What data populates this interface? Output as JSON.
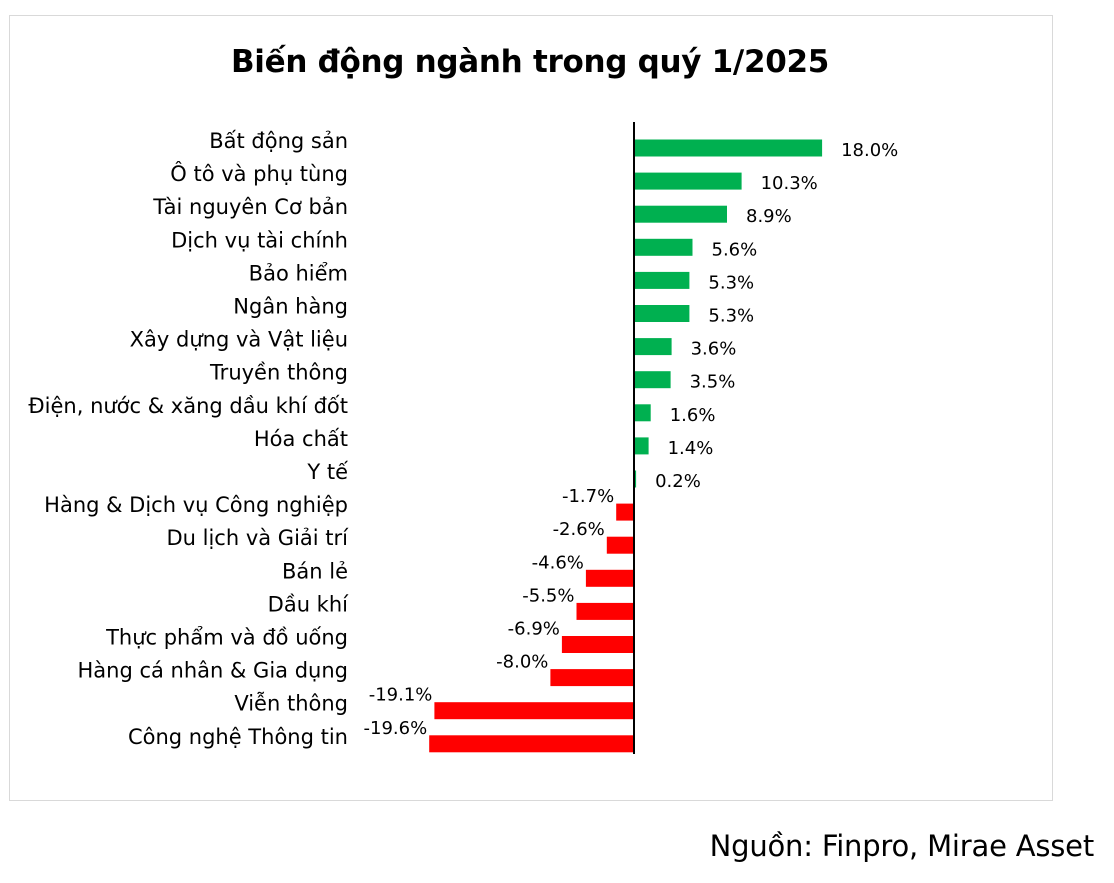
{
  "chart_data": {
    "type": "bar",
    "orientation": "horizontal",
    "title": "Biến động ngành trong quý 1/2025",
    "categories": [
      "Bất động sản",
      "Ô tô và phụ tùng",
      "Tài nguyên Cơ bản",
      "Dịch vụ tài chính",
      "Bảo hiểm",
      "Ngân hàng",
      "Xây dựng và Vật liệu",
      "Truyền thông",
      "Điện, nước & xăng dầu khí đốt",
      "Hóa chất",
      "Y tế",
      "Hàng & Dịch vụ Công nghiệp",
      "Du lịch và Giải trí",
      "Bán lẻ",
      "Dầu khí",
      "Thực phẩm và đồ uống",
      "Hàng cá nhân & Gia dụng",
      "Viễn thông",
      "Công nghệ Thông tin"
    ],
    "values": [
      18.0,
      10.3,
      8.9,
      5.6,
      5.3,
      5.3,
      3.6,
      3.5,
      1.6,
      1.4,
      0.2,
      -1.7,
      -2.6,
      -4.6,
      -5.5,
      -6.9,
      -8.0,
      -19.1,
      -19.6
    ],
    "data_labels": [
      "18.0%",
      "10.3%",
      "8.9%",
      "5.6%",
      "5.3%",
      "5.3%",
      "3.6%",
      "3.5%",
      "1.6%",
      "1.4%",
      "0.2%",
      "-1.7%",
      "-2.6%",
      "-4.6%",
      "-5.5%",
      "-6.9%",
      "-8.0%",
      "-19.1%",
      "-19.6%"
    ],
    "unit": "%",
    "xlim": [
      -20,
      18
    ],
    "grid": false,
    "legend": "none",
    "colors": {
      "positive": "#00b050",
      "negative": "#ff0000",
      "axis": "#000000"
    }
  },
  "source": "Nguồn: Finpro, Mirae Asset"
}
